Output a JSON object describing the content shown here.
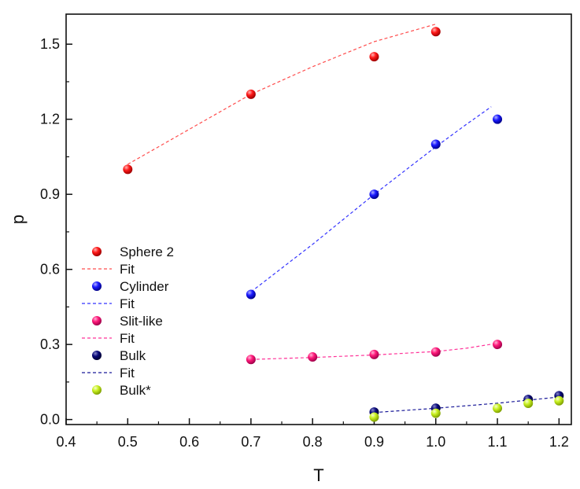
{
  "chart_data": {
    "type": "scatter",
    "title": "",
    "xlabel": "T",
    "ylabel": "p",
    "xlim": [
      0.4,
      1.22
    ],
    "ylim": [
      -0.02,
      1.62
    ],
    "grid": false,
    "legend_position": "middle-left",
    "xticks": [
      0.4,
      0.5,
      0.6,
      0.7,
      0.8,
      0.9,
      1.0,
      1.1,
      1.2
    ],
    "xtick_labels": [
      "0.4",
      "0.5",
      "0.6",
      "0.7",
      "0.8",
      "0.9",
      "1.0",
      "1.1",
      "1.2"
    ],
    "yticks": [
      0.0,
      0.3,
      0.6,
      0.9,
      1.2,
      1.5
    ],
    "ytick_labels": [
      "0.0",
      "0.3",
      "0.6",
      "0.9",
      "1.2",
      "1.5"
    ],
    "series": [
      {
        "name": "Sphere 2",
        "kind": "points",
        "color": "#ff1a1a",
        "x": [
          0.5,
          0.7,
          0.9,
          1.0
        ],
        "y": [
          1.0,
          1.3,
          1.45,
          1.55
        ]
      },
      {
        "name": "Fit",
        "kind": "dashed-line",
        "color": "#ff4d4d",
        "x": [
          0.5,
          0.6,
          0.7,
          0.8,
          0.9,
          1.0
        ],
        "y": [
          1.02,
          1.16,
          1.3,
          1.41,
          1.51,
          1.58
        ]
      },
      {
        "name": "Cylinder",
        "kind": "points",
        "color": "#1a1aff",
        "x": [
          0.7,
          0.9,
          1.0,
          1.1
        ],
        "y": [
          0.5,
          0.9,
          1.1,
          1.2
        ]
      },
      {
        "name": "Fit",
        "kind": "dashed-line",
        "color": "#3333ff",
        "x": [
          0.7,
          0.8,
          0.9,
          1.0,
          1.05,
          1.09
        ],
        "y": [
          0.51,
          0.7,
          0.9,
          1.09,
          1.18,
          1.25
        ]
      },
      {
        "name": "Slit-like",
        "kind": "points",
        "color": "#ff1a7a",
        "x": [
          0.7,
          0.8,
          0.9,
          1.0,
          1.1
        ],
        "y": [
          0.24,
          0.25,
          0.26,
          0.27,
          0.3
        ]
      },
      {
        "name": "Fit",
        "kind": "dashed-line",
        "color": "#ff3399",
        "x": [
          0.7,
          0.8,
          0.9,
          1.0,
          1.05,
          1.1
        ],
        "y": [
          0.24,
          0.248,
          0.258,
          0.272,
          0.285,
          0.305
        ]
      },
      {
        "name": "Bulk",
        "kind": "points",
        "color": "#0a0a7a",
        "x": [
          0.9,
          1.0,
          1.15,
          1.2
        ],
        "y": [
          0.03,
          0.045,
          0.08,
          0.095
        ]
      },
      {
        "name": "Fit",
        "kind": "dashed-line",
        "color": "#1a1a99",
        "x": [
          0.9,
          1.0,
          1.1,
          1.2
        ],
        "y": [
          0.028,
          0.045,
          0.065,
          0.09
        ]
      },
      {
        "name": "Bulk*",
        "kind": "points",
        "color": "#c8f020",
        "x": [
          0.9,
          1.0,
          1.1,
          1.15,
          1.2
        ],
        "y": [
          0.01,
          0.025,
          0.045,
          0.065,
          0.075
        ]
      }
    ]
  }
}
